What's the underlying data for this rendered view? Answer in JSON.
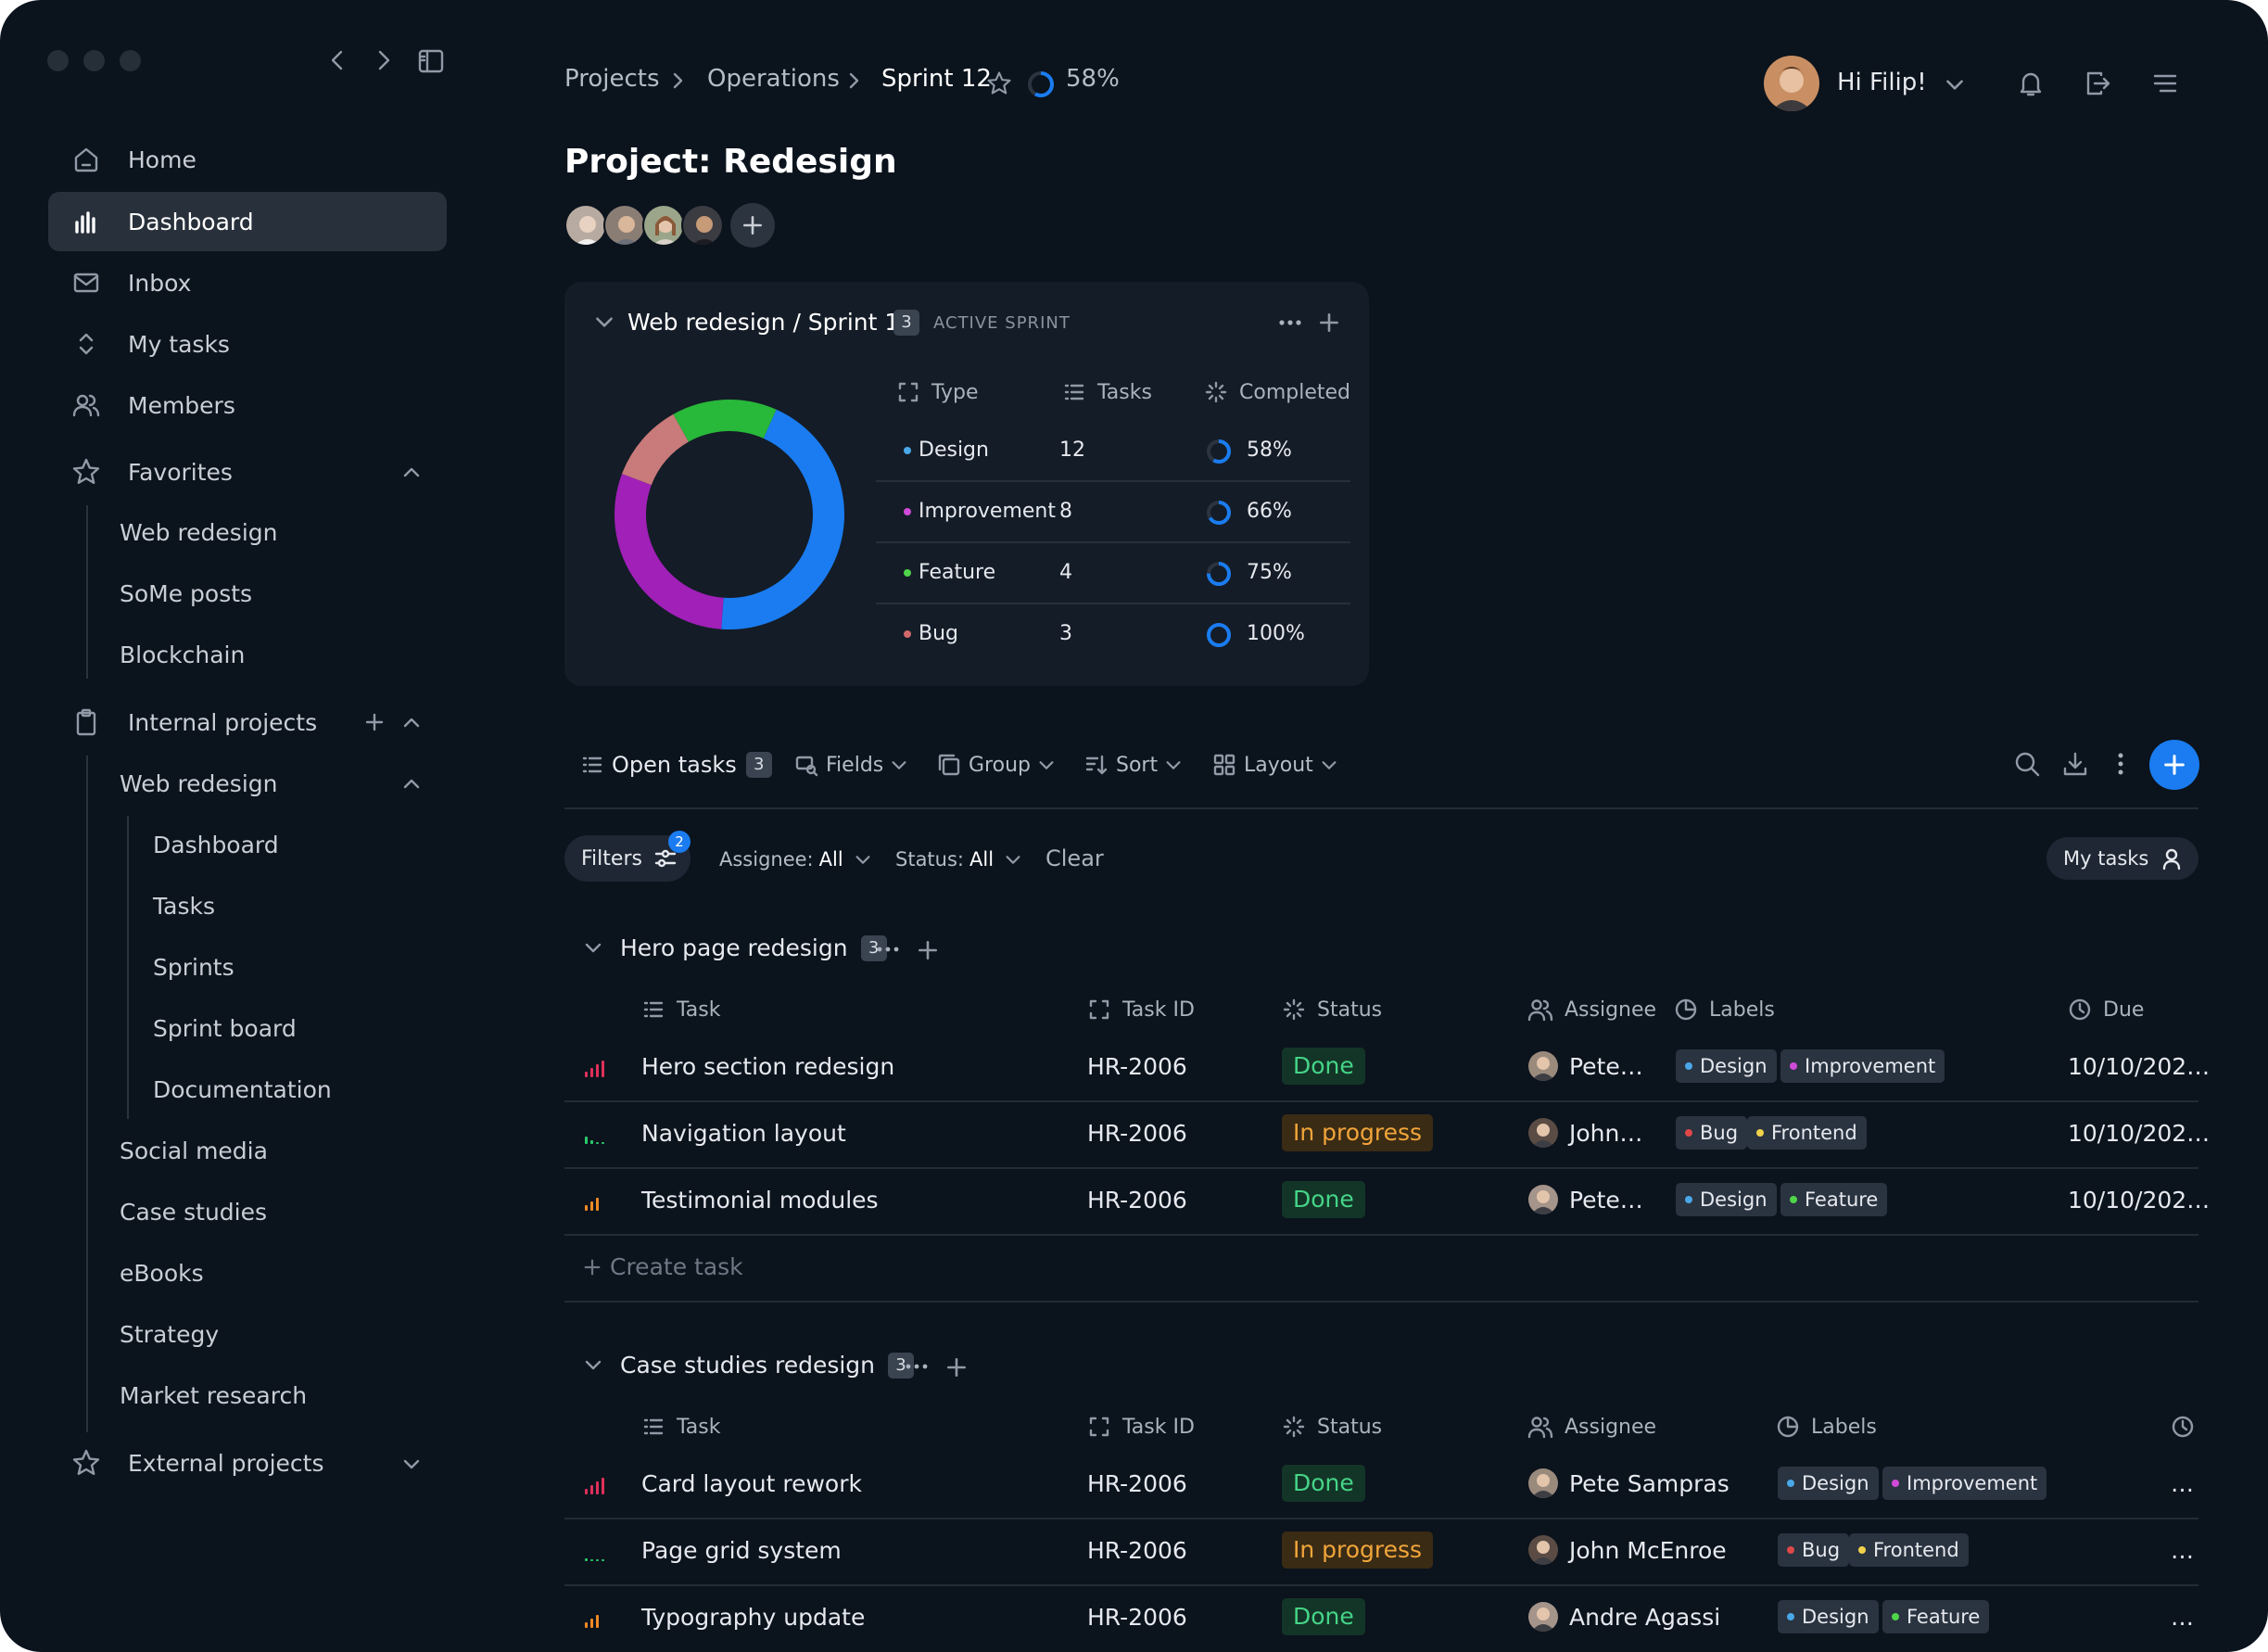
{
  "sidebar": {
    "nav": [
      {
        "label": "Home",
        "icon": "home-icon"
      },
      {
        "label": "Dashboard",
        "icon": "bar-chart-icon",
        "active": true
      },
      {
        "label": "Inbox",
        "icon": "mail-icon"
      },
      {
        "label": "My tasks",
        "icon": "sort-arrows-icon"
      },
      {
        "label": "Members",
        "icon": "users-icon"
      }
    ],
    "favorites": {
      "label": "Favorites",
      "items": [
        "Web redesign",
        "SoMe posts",
        "Blockchain"
      ]
    },
    "internal": {
      "label": "Internal projects",
      "web_redesign": {
        "label": "Web redesign",
        "items": [
          "Dashboard",
          "Tasks",
          "Sprints",
          "Sprint board",
          "Documentation"
        ]
      },
      "items": [
        "Social media",
        "Case studies",
        "eBooks",
        "Strategy",
        "Market research"
      ]
    },
    "external": {
      "label": "External projects"
    }
  },
  "header": {
    "breadcrumb": [
      "Projects",
      "Operations",
      "Sprint 12"
    ],
    "progress": "58%",
    "progress_value": 0.58,
    "greeting": "Hi Filip!"
  },
  "project": {
    "title": "Project: Redesign"
  },
  "sprint_card": {
    "title": "Web redesign / Sprint 12",
    "count": "3",
    "badge": "ACTIVE SPRINT",
    "headers": {
      "type": "Type",
      "tasks": "Tasks",
      "completed": "Completed"
    },
    "rows": [
      {
        "type": "Design",
        "tasks": "12",
        "completed": "58%",
        "fraction": 0.58,
        "color": "#4aa8e8"
      },
      {
        "type": "Improvement",
        "tasks": "8",
        "completed": "66%",
        "fraction": 0.66,
        "color": "#d04ad8"
      },
      {
        "type": "Feature",
        "tasks": "4",
        "completed": "75%",
        "fraction": 0.75,
        "color": "#4fd44a"
      },
      {
        "type": "Bug",
        "tasks": "3",
        "completed": "100%",
        "fraction": 1.0,
        "color": "#d06a6a"
      }
    ],
    "donut": [
      {
        "name": "Design",
        "value": 12,
        "color": "#1a7cf0"
      },
      {
        "name": "Improvement",
        "value": 8,
        "color": "#a020b8"
      },
      {
        "name": "Bug",
        "value": 3,
        "color": "#c97a7a"
      },
      {
        "name": "Feature",
        "value": 4,
        "color": "#28b83a"
      }
    ]
  },
  "toolbar": {
    "open_tasks": "Open tasks",
    "open_count": "3",
    "fields": "Fields",
    "group": "Group",
    "sort": "Sort",
    "layout": "Layout"
  },
  "filters": {
    "label": "Filters",
    "badge": "2",
    "assignee_label": "Assignee:",
    "assignee_value": "All",
    "status_label": "Status:",
    "status_value": "All",
    "clear": "Clear",
    "my_tasks": "My tasks"
  },
  "columns": {
    "task": "Task",
    "task_id": "Task ID",
    "status": "Status",
    "assignee": "Assignee",
    "labels": "Labels",
    "due": "Due"
  },
  "label_colors": {
    "Design": "#4aa8e8",
    "Improvement": "#d04ad8",
    "Feature": "#4fd44a",
    "Bug": "#e04848",
    "Frontend": "#f0d24a"
  },
  "groups": [
    {
      "title": "Hero page redesign",
      "count": "3",
      "tasks": [
        {
          "name": "Hero section redesign",
          "id": "HR-2006",
          "status": "Done",
          "assignee": "Pete…",
          "labels": [
            "Design",
            "Improvement"
          ],
          "due": "10/10/202…",
          "priority": "high"
        },
        {
          "name": "Navigation layout",
          "id": "HR-2006",
          "status": "In progress",
          "assignee": "John…",
          "labels": [
            "Bug",
            "Frontend"
          ],
          "due": "10/10/202…",
          "priority": "low"
        },
        {
          "name": "Testimonial modules",
          "id": "HR-2006",
          "status": "Done",
          "assignee": "Pete…",
          "labels": [
            "Design",
            "Feature"
          ],
          "due": "10/10/202…",
          "priority": "medium"
        }
      ],
      "create": "Create task"
    },
    {
      "title": "Case studies redesign",
      "count": "3",
      "tasks": [
        {
          "name": "Card layout rework",
          "id": "HR-2006",
          "status": "Done",
          "assignee": "Pete Sampras",
          "labels": [
            "Design",
            "Improvement"
          ],
          "due": "…",
          "priority": "high"
        },
        {
          "name": "Page grid system",
          "id": "HR-2006",
          "status": "In progress",
          "assignee": "John McEnroe",
          "labels": [
            "Bug",
            "Frontend"
          ],
          "due": "…",
          "priority": "lowest"
        },
        {
          "name": "Typography update",
          "id": "HR-2006",
          "status": "Done",
          "assignee": "Andre Agassi",
          "labels": [
            "Design",
            "Feature"
          ],
          "due": "…",
          "priority": "medium"
        }
      ]
    }
  ]
}
